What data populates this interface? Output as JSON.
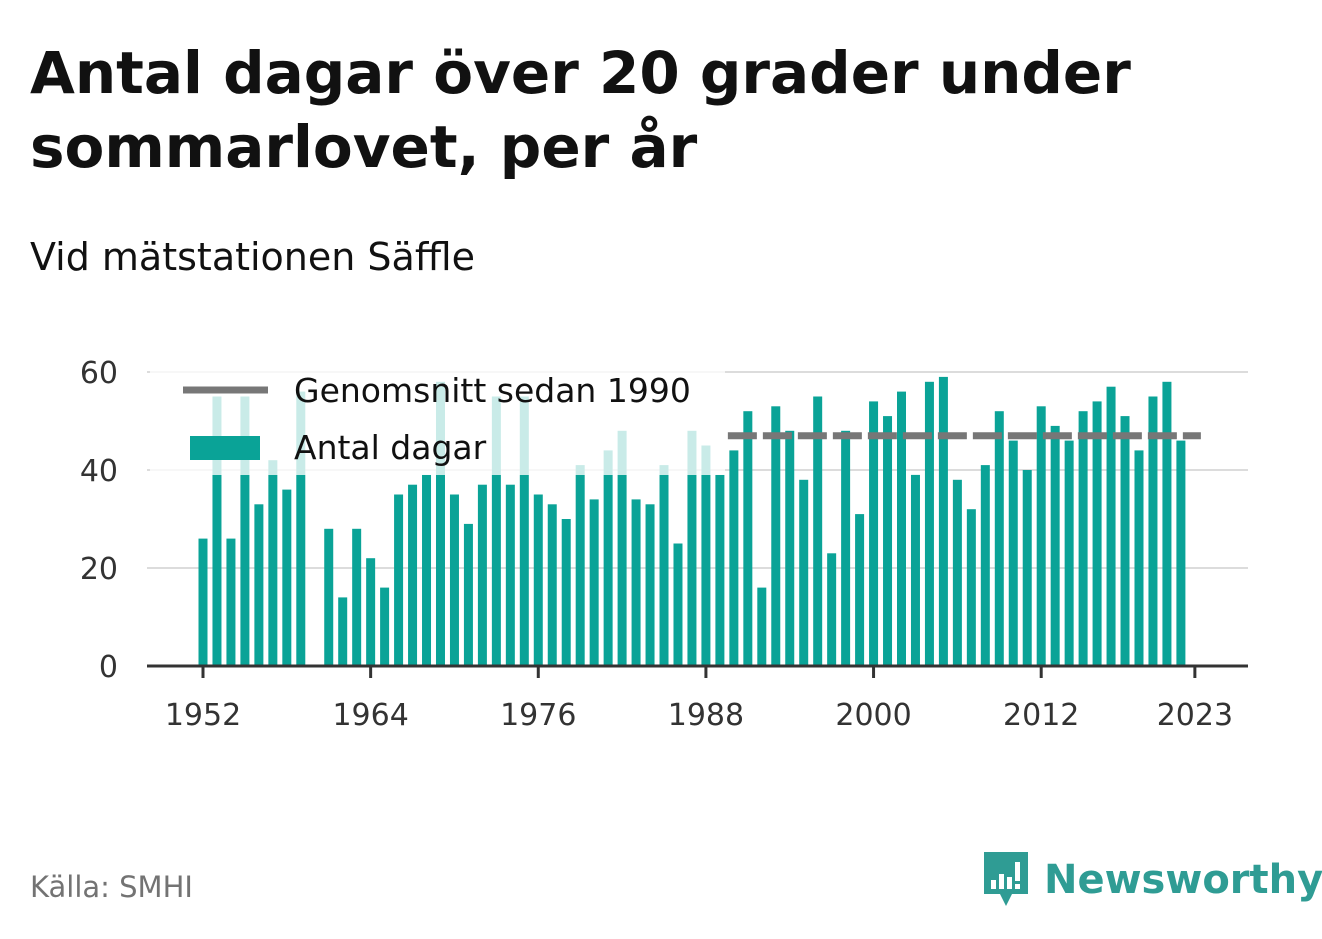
{
  "title": "Antal dagar över 20 grader under sommarlovet, per år",
  "subtitle": "Vid mätstationen Säffle",
  "source": "Källa: SMHI",
  "brand": "Newsworthy",
  "chart_data": {
    "type": "bar",
    "x": [
      1952,
      1953,
      1954,
      1955,
      1956,
      1957,
      1958,
      1959,
      1960,
      1961,
      1962,
      1963,
      1964,
      1965,
      1966,
      1967,
      1968,
      1969,
      1970,
      1971,
      1972,
      1973,
      1974,
      1975,
      1976,
      1977,
      1978,
      1979,
      1980,
      1981,
      1982,
      1983,
      1984,
      1985,
      1986,
      1987,
      1988,
      1989,
      1990,
      1991,
      1992,
      1993,
      1994,
      1995,
      1996,
      1997,
      1998,
      1999,
      2000,
      2001,
      2002,
      2003,
      2004,
      2005,
      2006,
      2007,
      2008,
      2009,
      2010,
      2011,
      2012,
      2013,
      2014,
      2015,
      2016,
      2017,
      2018,
      2019,
      2020,
      2021,
      2022,
      2023
    ],
    "series": [
      {
        "name": "Antal dagar",
        "color": "#0aa397",
        "values": [
          26,
          55,
          26,
          55,
          33,
          42,
          36,
          56,
          null,
          28,
          14,
          28,
          22,
          16,
          35,
          37,
          39,
          58,
          35,
          29,
          37,
          55,
          37,
          55,
          35,
          33,
          30,
          41,
          34,
          44,
          48,
          34,
          33,
          41,
          25,
          48,
          45,
          39,
          44,
          52,
          16,
          53,
          48,
          38,
          55,
          23,
          48,
          31,
          54,
          51,
          56,
          39,
          58,
          59,
          38,
          32,
          41,
          52,
          46,
          40,
          53,
          49,
          46,
          52,
          54,
          57,
          51,
          44,
          55,
          58,
          46,
          null
        ]
      },
      {
        "name": "Genomsnitt sedan 1990",
        "color": "#777777",
        "value": 47,
        "from": 1990,
        "to": 2023
      }
    ],
    "x_ticks": [
      "1952",
      "1964",
      "1976",
      "1988",
      "2000",
      "2012",
      "2023"
    ],
    "y_ticks": [
      "0",
      "20",
      "40",
      "60"
    ],
    "ylim": [
      0,
      60
    ],
    "grid": true,
    "legend_position": "top-left"
  }
}
